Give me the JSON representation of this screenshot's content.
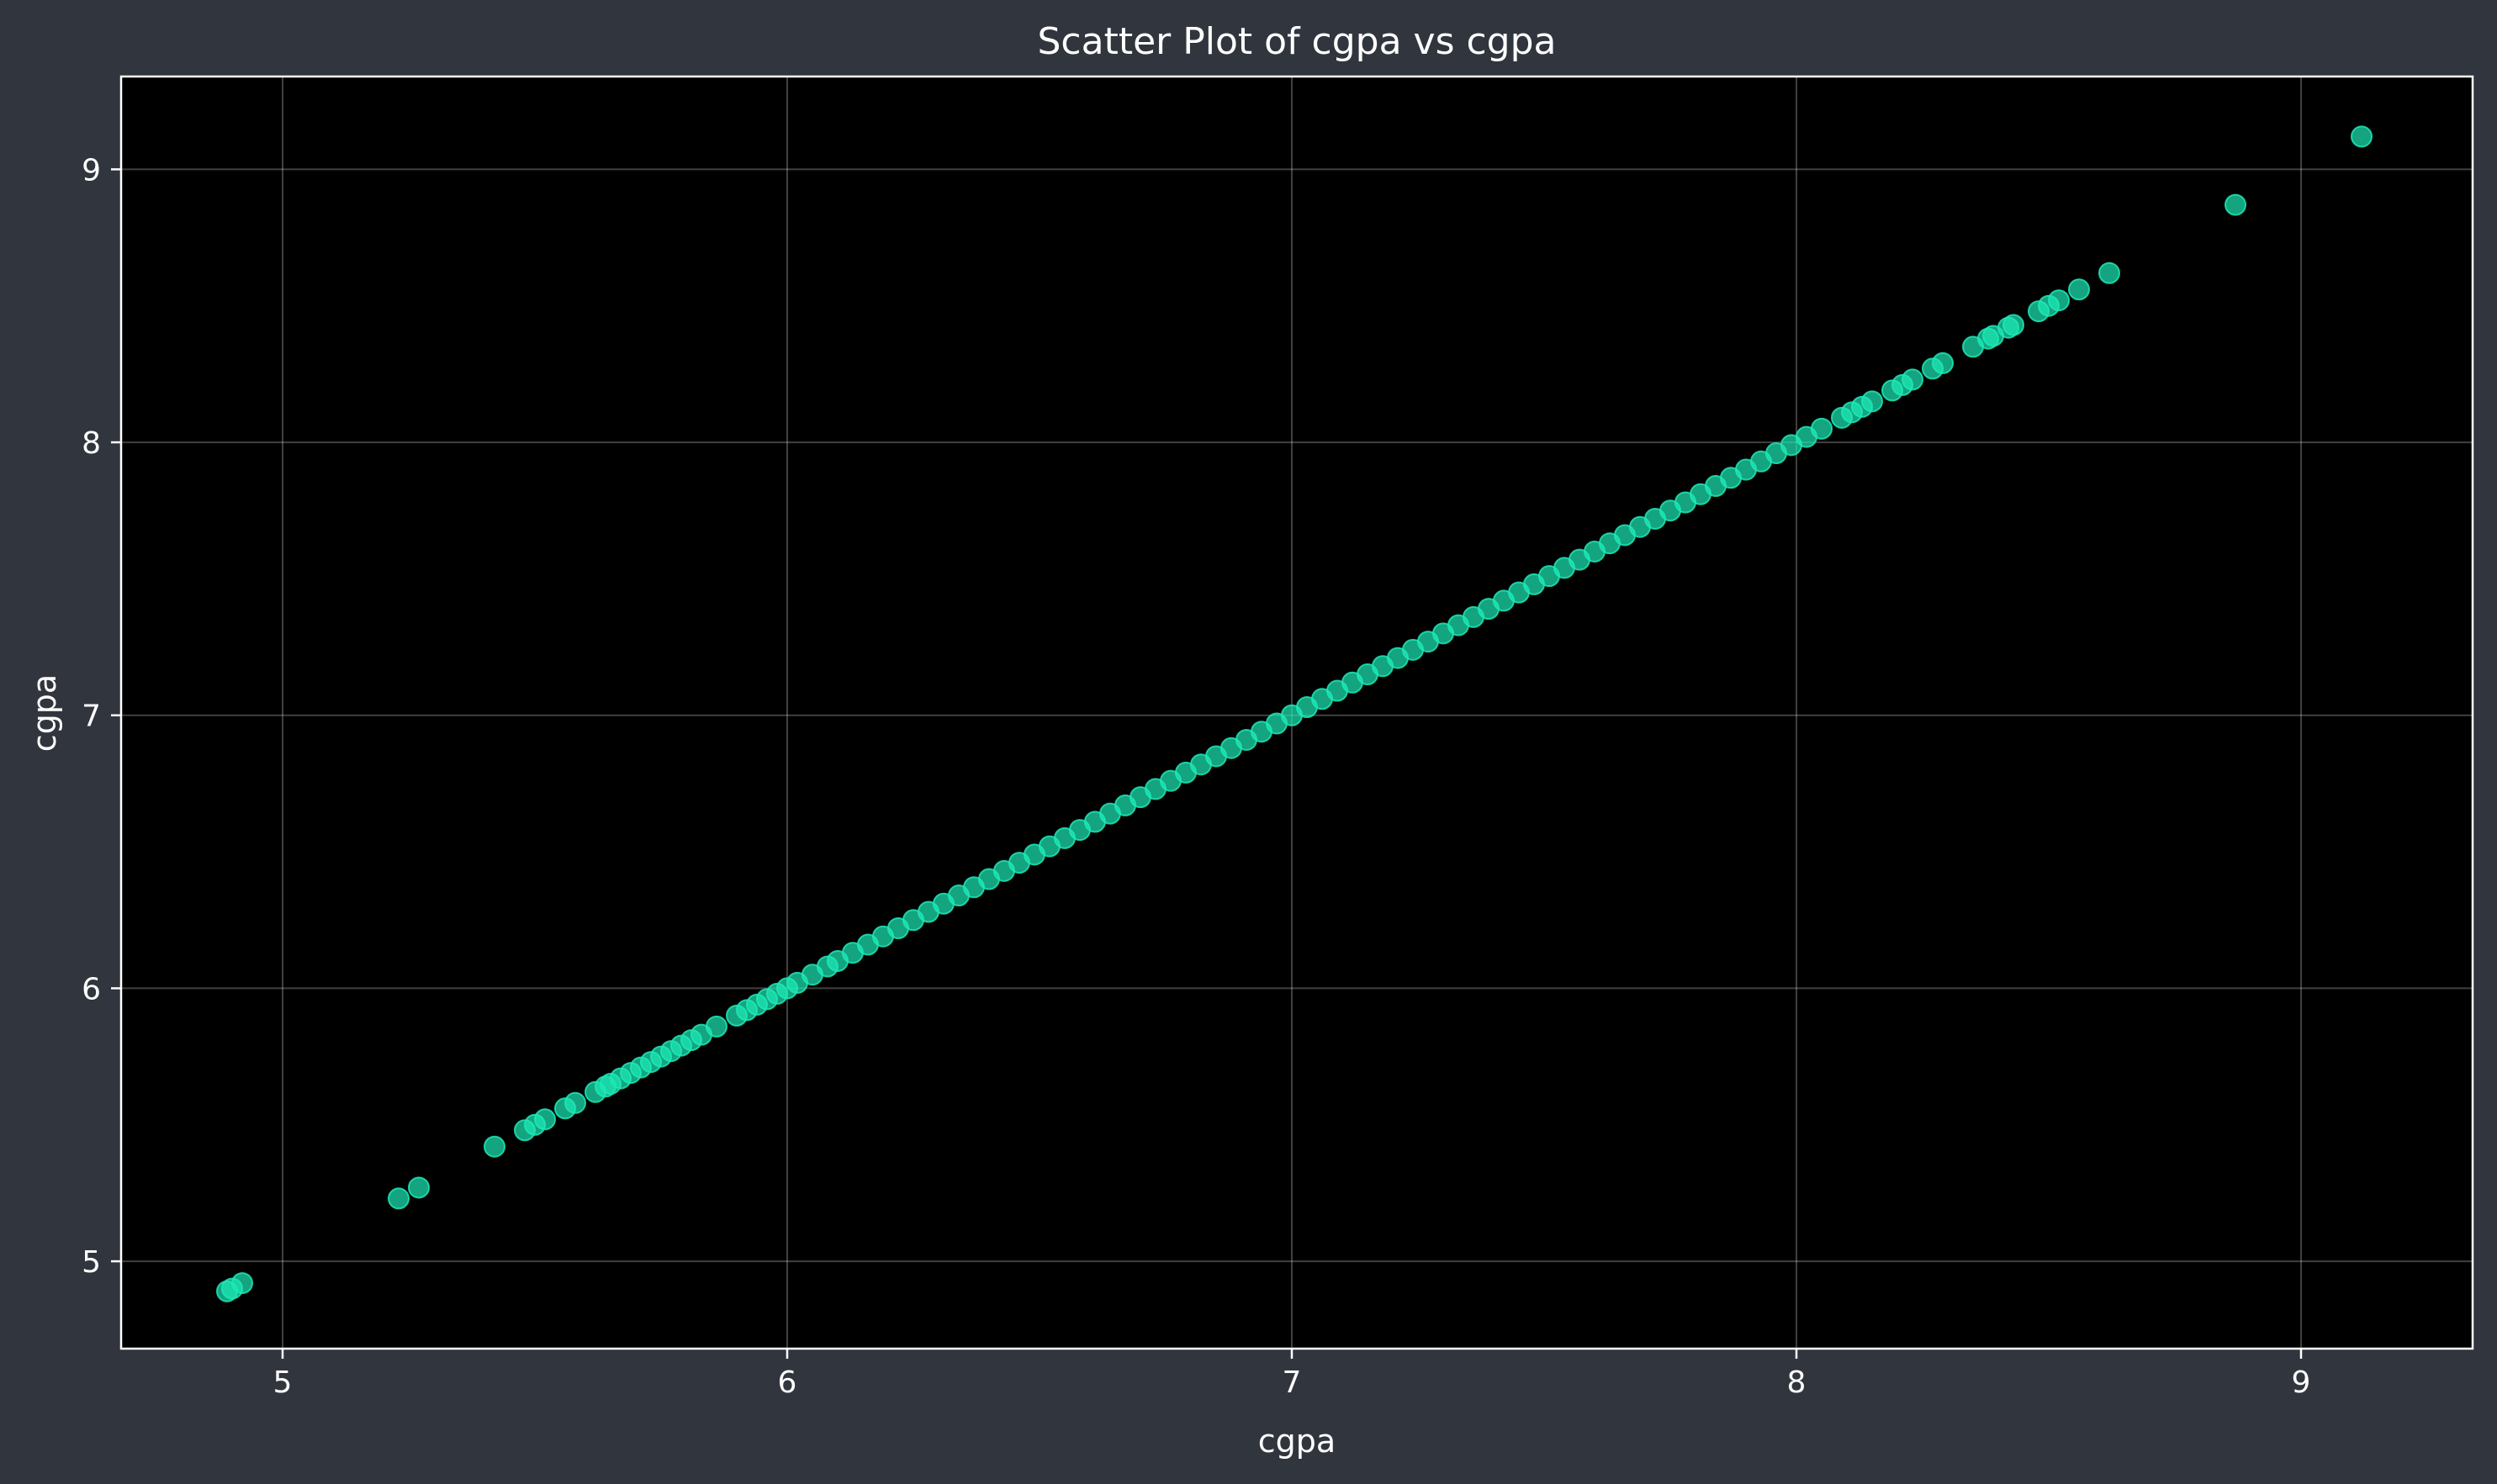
{
  "chart_data": {
    "type": "scatter",
    "title": "Scatter Plot of cgpa vs cgpa",
    "xlabel": "cgpa",
    "ylabel": "cgpa",
    "xlim": [
      4.68,
      9.34
    ],
    "ylim": [
      4.68,
      9.34
    ],
    "xticks": [
      5,
      6,
      7,
      8,
      9
    ],
    "yticks": [
      5,
      6,
      7,
      8,
      9
    ],
    "grid": true,
    "marker_color": "#1de9b6",
    "background_color": "#000000",
    "figure_color": "#31353d",
    "series": [
      {
        "x": [
          4.89,
          4.9,
          4.92,
          5.23,
          5.27,
          5.42,
          5.48,
          5.5,
          5.52,
          5.56,
          5.58,
          5.62,
          5.64,
          5.65,
          5.67,
          5.69,
          5.71,
          5.73,
          5.75,
          5.77,
          5.79,
          5.81,
          5.83,
          5.86,
          5.9,
          5.92,
          5.94,
          5.96,
          5.98,
          6.0,
          6.02,
          6.05,
          6.08,
          6.1,
          6.13,
          6.16,
          6.19,
          6.22,
          6.25,
          6.28,
          6.31,
          6.34,
          6.37,
          6.4,
          6.43,
          6.46,
          6.49,
          6.52,
          6.55,
          6.58,
          6.61,
          6.64,
          6.67,
          6.7,
          6.73,
          6.76,
          6.79,
          6.82,
          6.85,
          6.88,
          6.91,
          6.94,
          6.97,
          7.0,
          7.03,
          7.06,
          7.09,
          7.12,
          7.15,
          7.18,
          7.21,
          7.24,
          7.27,
          7.3,
          7.33,
          7.36,
          7.39,
          7.42,
          7.45,
          7.48,
          7.51,
          7.54,
          7.57,
          7.6,
          7.63,
          7.66,
          7.69,
          7.72,
          7.75,
          7.78,
          7.81,
          7.84,
          7.87,
          7.9,
          7.93,
          7.96,
          7.99,
          8.02,
          8.05,
          8.09,
          8.11,
          8.13,
          8.15,
          8.19,
          8.21,
          8.23,
          8.27,
          8.29,
          8.35,
          8.38,
          8.39,
          8.42,
          8.43,
          8.48,
          8.5,
          8.52,
          8.56,
          8.62,
          8.87,
          9.12
        ],
        "y": [
          4.89,
          4.9,
          4.92,
          5.23,
          5.27,
          5.42,
          5.48,
          5.5,
          5.52,
          5.56,
          5.58,
          5.62,
          5.64,
          5.65,
          5.67,
          5.69,
          5.71,
          5.73,
          5.75,
          5.77,
          5.79,
          5.81,
          5.83,
          5.86,
          5.9,
          5.92,
          5.94,
          5.96,
          5.98,
          6.0,
          6.02,
          6.05,
          6.08,
          6.1,
          6.13,
          6.16,
          6.19,
          6.22,
          6.25,
          6.28,
          6.31,
          6.34,
          6.37,
          6.4,
          6.43,
          6.46,
          6.49,
          6.52,
          6.55,
          6.58,
          6.61,
          6.64,
          6.67,
          6.7,
          6.73,
          6.76,
          6.79,
          6.82,
          6.85,
          6.88,
          6.91,
          6.94,
          6.97,
          7.0,
          7.03,
          7.06,
          7.09,
          7.12,
          7.15,
          7.18,
          7.21,
          7.24,
          7.27,
          7.3,
          7.33,
          7.36,
          7.39,
          7.42,
          7.45,
          7.48,
          7.51,
          7.54,
          7.57,
          7.6,
          7.63,
          7.66,
          7.69,
          7.72,
          7.75,
          7.78,
          7.81,
          7.84,
          7.87,
          7.9,
          7.93,
          7.96,
          7.99,
          8.02,
          8.05,
          8.09,
          8.11,
          8.13,
          8.15,
          8.19,
          8.21,
          8.23,
          8.27,
          8.29,
          8.35,
          8.38,
          8.39,
          8.42,
          8.43,
          8.48,
          8.5,
          8.52,
          8.56,
          8.62,
          8.87,
          9.12
        ]
      }
    ]
  }
}
